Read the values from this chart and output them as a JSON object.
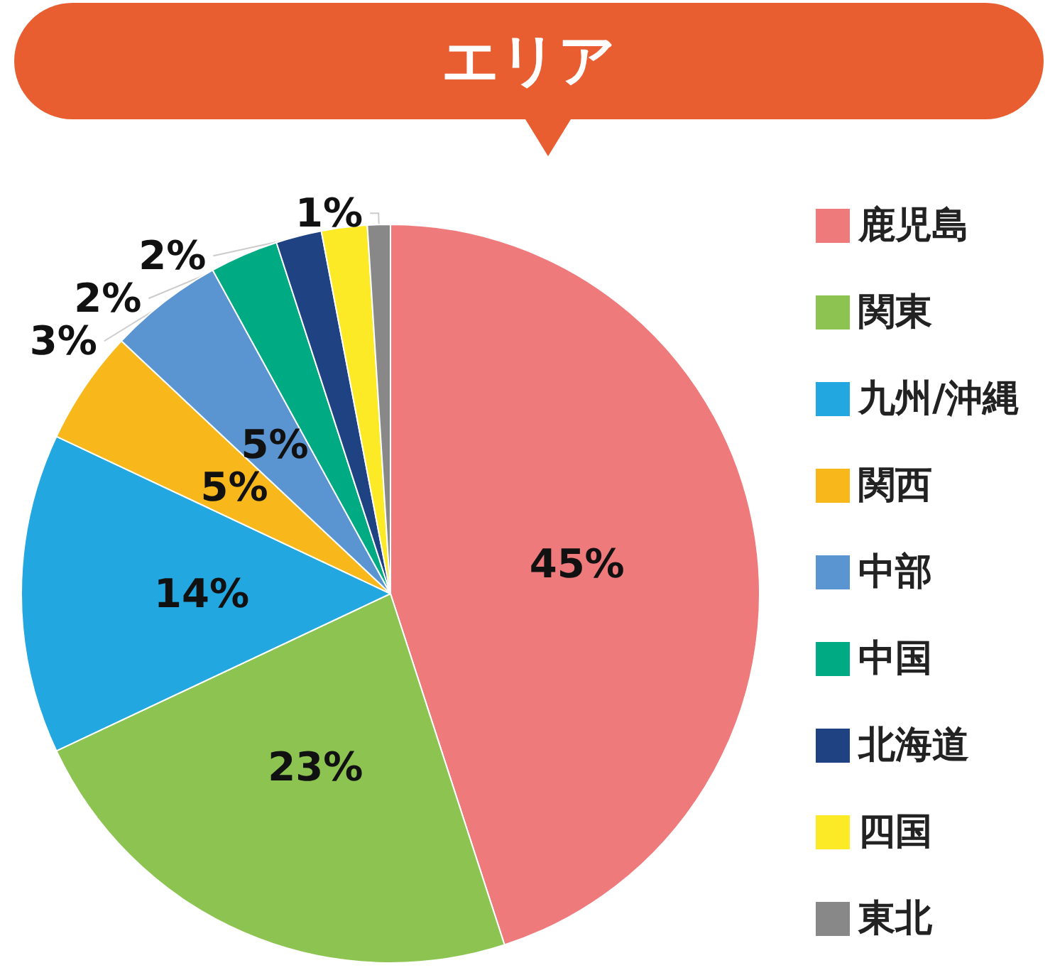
{
  "chart_data": {
    "type": "pie",
    "title": "エリア",
    "categories": [
      "鹿児島",
      "関東",
      "九州/沖縄",
      "関西",
      "中部",
      "中国",
      "北海道",
      "四国",
      "東北"
    ],
    "values": [
      45,
      23,
      14,
      5,
      5,
      3,
      2,
      2,
      1
    ],
    "colors": [
      "#ef7a7c",
      "#8dc451",
      "#22a7e0",
      "#f8b81c",
      "#5a95d2",
      "#00ab84",
      "#1e4282",
      "#fdea26",
      "#888888"
    ],
    "value_labels": [
      "45%",
      "23%",
      "14%",
      "5%",
      "5%",
      "3%",
      "2%",
      "2%",
      "1%"
    ],
    "legend": "right"
  }
}
